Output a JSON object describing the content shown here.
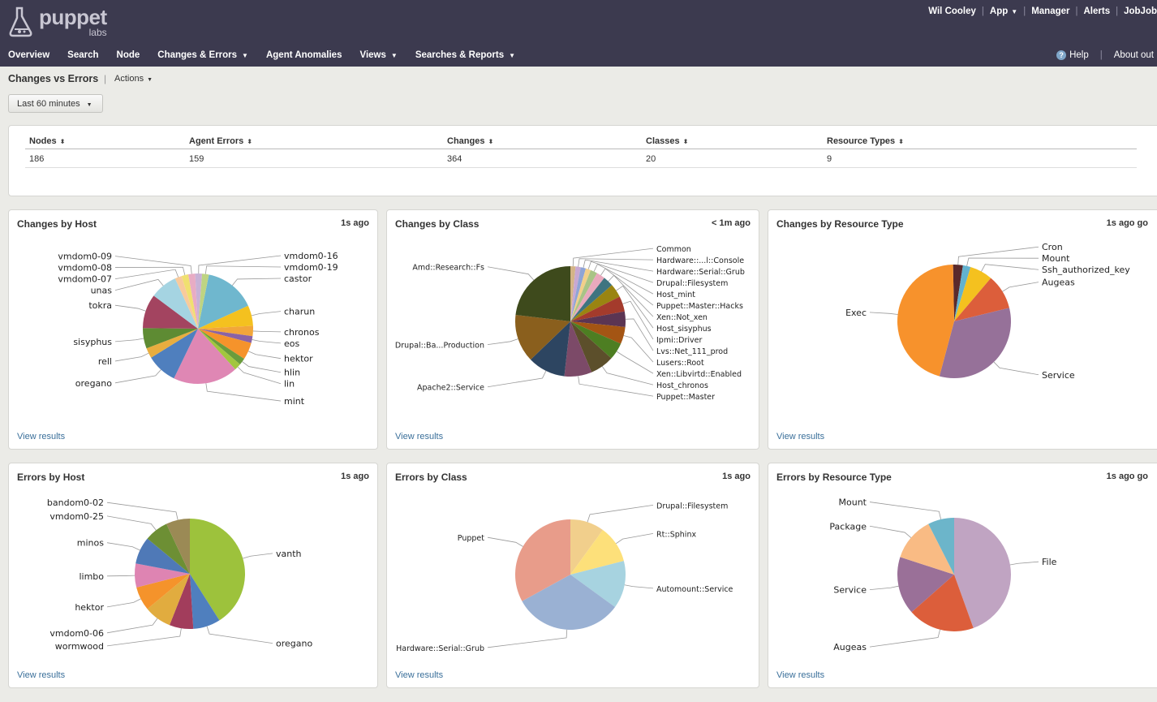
{
  "brand": {
    "word": "puppet",
    "sub": "labs"
  },
  "user_nav": {
    "user": "Wil Cooley",
    "app": "App",
    "manager": "Manager",
    "alerts": "Alerts",
    "jobjob": "JobJob"
  },
  "main_nav": [
    "Overview",
    "Search",
    "Node",
    "Changes & Errors",
    "Agent Anomalies",
    "Views",
    "Searches & Reports"
  ],
  "main_nav_dropdown": [
    false,
    false,
    false,
    true,
    false,
    true,
    true
  ],
  "right_nav": {
    "help": "Help",
    "about": "About out"
  },
  "page": {
    "title": "Changes vs Errors",
    "actions": "Actions",
    "range": "Last 60 minutes"
  },
  "summary": {
    "headers": [
      "Nodes",
      "Agent Errors",
      "Changes",
      "Classes",
      "Resource Types"
    ],
    "values": [
      "186",
      "159",
      "364",
      "20",
      "9"
    ]
  },
  "panels": [
    {
      "title": "Changes by Host",
      "time": "1s ago",
      "link": "View results",
      "chart_data": {
        "type": "pie",
        "slices": [
          {
            "label": "castor",
            "value": 15,
            "color": "#6fb7ce"
          },
          {
            "label": "charun",
            "value": 6,
            "color": "#f4c11f"
          },
          {
            "label": "chronos",
            "value": 3,
            "color": "#f2a63a"
          },
          {
            "label": "eos",
            "value": 2,
            "color": "#8a63a5"
          },
          {
            "label": "hektor",
            "value": 5,
            "color": "#f5932b"
          },
          {
            "label": "hlin",
            "value": 2,
            "color": "#6a9c3c"
          },
          {
            "label": "lin",
            "value": 2,
            "color": "#a2c63f"
          },
          {
            "label": "mint",
            "value": 19,
            "color": "#df87b4"
          },
          {
            "label": "oregano",
            "value": 9,
            "color": "#4f7fbe"
          },
          {
            "label": "rell",
            "value": 3,
            "color": "#e8ad3f"
          },
          {
            "label": "sisyphus",
            "value": 6,
            "color": "#5e8b33"
          },
          {
            "label": "tokra",
            "value": 10,
            "color": "#a34460"
          },
          {
            "label": "unas",
            "value": 8,
            "color": "#a5d4e2"
          },
          {
            "label": "vmdom0-07",
            "value": 2,
            "color": "#f8ca9c"
          },
          {
            "label": "vmdom0-08",
            "value": 2,
            "color": "#f0e070"
          },
          {
            "label": "vmdom0-09",
            "value": 2,
            "color": "#e8acc4"
          },
          {
            "label": "vmdom0-16",
            "value": 2,
            "color": "#c8b2d6"
          },
          {
            "label": "vmdom0-19",
            "value": 2,
            "color": "#bed482"
          }
        ]
      }
    },
    {
      "title": "Changes by Class",
      "time": "< 1m ago",
      "link": "View results",
      "chart_data": {
        "type": "pie",
        "slices": [
          {
            "label": "Common",
            "value": 1.5,
            "color": "#d4b487"
          },
          {
            "label": "Hardware::...l::Console",
            "value": 1.5,
            "color": "#c8a8d2"
          },
          {
            "label": "Hardware::Serial::Grub",
            "value": 1.5,
            "color": "#8fa4d6"
          },
          {
            "label": "Drupal::Filesystem",
            "value": 1.5,
            "color": "#f2cf8a"
          },
          {
            "label": "Host_mint",
            "value": 2,
            "color": "#a9c486"
          },
          {
            "label": "Puppet::Master::Hacks",
            "value": 2.5,
            "color": "#e9a9bd"
          },
          {
            "label": "Xen::Not_xen",
            "value": 3,
            "color": "#3f7480"
          },
          {
            "label": "Host_sisyphus",
            "value": 4,
            "color": "#9a8411"
          },
          {
            "label": "Ipmi::Driver",
            "value": 4.5,
            "color": "#a43b2c"
          },
          {
            "label": "Lvs::Net_111_prod",
            "value": 4.5,
            "color": "#5b3553"
          },
          {
            "label": "Lusers::Root",
            "value": 5,
            "color": "#a45514"
          },
          {
            "label": "Xen::Libvirtd::Enabled",
            "value": 5,
            "color": "#4d7e22"
          },
          {
            "label": "Host_chronos",
            "value": 7,
            "color": "#5c4f2b"
          },
          {
            "label": "Puppet::Master",
            "value": 8,
            "color": "#7c4a68"
          },
          {
            "label": "Apache2::Service",
            "value": 11,
            "color": "#2d4561"
          },
          {
            "label": "Drupal::Ba...Production",
            "value": 14,
            "color": "#8a5f1d"
          },
          {
            "label": "Amd::Research::Fs",
            "value": 23,
            "color": "#3e4a1c"
          }
        ]
      }
    },
    {
      "title": "Changes by Resource Type",
      "time": "1s ago go",
      "link": "View results",
      "chart_data": {
        "type": "pie",
        "slices": [
          {
            "label": "Cron",
            "value": 2.8,
            "color": "#5a2a2c"
          },
          {
            "label": "Mount",
            "value": 2.2,
            "color": "#62b2cf"
          },
          {
            "label": "Ssh_authorized_key",
            "value": 6.5,
            "color": "#f4c11f"
          },
          {
            "label": "Augeas",
            "value": 10,
            "color": "#dc5e3b"
          },
          {
            "label": "Service",
            "value": 33,
            "color": "#967199"
          },
          {
            "label": "Exec",
            "value": 45.5,
            "color": "#f7922c"
          }
        ]
      }
    },
    {
      "title": "Errors by Host",
      "time": "1s ago",
      "link": "View results",
      "chart_data": {
        "type": "pie",
        "slices": [
          {
            "label": "vanth",
            "value": 41,
            "color": "#9dc23c"
          },
          {
            "label": "oregano",
            "value": 8,
            "color": "#4f7fbe"
          },
          {
            "label": "wormwood",
            "value": 7,
            "color": "#a23d5c"
          },
          {
            "label": "vmdom0-06",
            "value": 8,
            "color": "#e1ac3f"
          },
          {
            "label": "hektor",
            "value": 7,
            "color": "#f5932b"
          },
          {
            "label": "limbo",
            "value": 7,
            "color": "#de84b2"
          },
          {
            "label": "minos",
            "value": 8,
            "color": "#4f79b7"
          },
          {
            "label": "vmdom0-25",
            "value": 7,
            "color": "#6d8f34"
          },
          {
            "label": "bandom0-02",
            "value": 7,
            "color": "#9b8a55"
          }
        ]
      }
    },
    {
      "title": "Errors by Class",
      "time": "1s ago",
      "link": "View results",
      "chart_data": {
        "type": "pie",
        "slices": [
          {
            "label": "Drupal::Filesystem",
            "value": 10,
            "color": "#f1cf8c"
          },
          {
            "label": "Rt::Sphinx",
            "value": 11,
            "color": "#fde07a"
          },
          {
            "label": "Automount::Service",
            "value": 14,
            "color": "#a7d3e0"
          },
          {
            "label": "Hardware::Serial::Grub",
            "value": 32,
            "color": "#9ab1d3"
          },
          {
            "label": "Puppet",
            "value": 33,
            "color": "#e89c8a"
          }
        ]
      }
    },
    {
      "title": "Errors by Resource Type",
      "time": "1s ago go",
      "link": "View results",
      "chart_data": {
        "type": "pie",
        "slices": [
          {
            "label": "File",
            "value": 44.5,
            "color": "#c0a4c2"
          },
          {
            "label": "Augeas",
            "value": 19,
            "color": "#dc5e3b"
          },
          {
            "label": "Service",
            "value": 16.5,
            "color": "#9a7098"
          },
          {
            "label": "Package",
            "value": 12.5,
            "color": "#f9bb84"
          },
          {
            "label": "Mount",
            "value": 7.5,
            "color": "#6cb5ca"
          }
        ]
      }
    }
  ]
}
